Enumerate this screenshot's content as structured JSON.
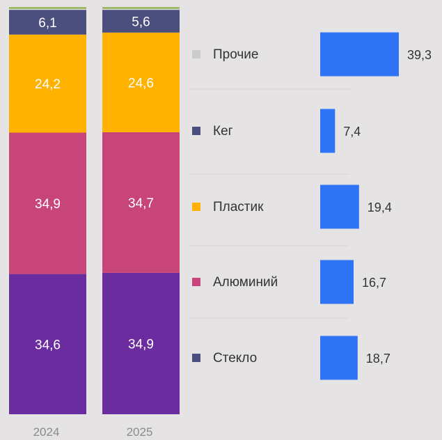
{
  "chart_data": [
    {
      "type": "bar",
      "stacked": true,
      "categories": [
        "2024",
        "2025"
      ],
      "series": [
        {
          "name": "Стекло",
          "values": [
            34.6,
            34.9
          ],
          "labels": [
            "34,6",
            "34,9"
          ],
          "color": "#6a2c9e"
        },
        {
          "name": "Алюминий",
          "values": [
            34.9,
            34.7
          ],
          "labels": [
            "34,9",
            "34,7"
          ],
          "color": "#c8457a"
        },
        {
          "name": "Пластик",
          "values": [
            24.2,
            24.6
          ],
          "labels": [
            "24,2",
            "24,6"
          ],
          "color": "#ffb300"
        },
        {
          "name": "Кег",
          "values": [
            6.1,
            5.6
          ],
          "labels": [
            "6,1",
            "5,6"
          ],
          "color": "#4b4f7e"
        }
      ],
      "ylim": [
        0,
        100
      ]
    },
    {
      "type": "bar",
      "orientation": "horizontal",
      "categories": [
        "Прочие",
        "Кег",
        "Пластик",
        "Алюминий",
        "Стекло"
      ],
      "values": [
        39.3,
        7.4,
        19.4,
        16.7,
        18.7
      ],
      "labels": [
        "39,3",
        "7,4",
        "19,4",
        "16,7",
        "18,7"
      ],
      "legend_colors": [
        "#cbcbcb",
        "#4b4f7e",
        "#ffb300",
        "#c8457a",
        "#4b4f7e"
      ],
      "bar_color": "#2f74f5"
    }
  ],
  "colors": {
    "background": "#e6e3e4",
    "stack_label": "#ffffff",
    "text": "#333333",
    "axis_label": "#8a8a8a",
    "separator": "#d6d3d4"
  }
}
